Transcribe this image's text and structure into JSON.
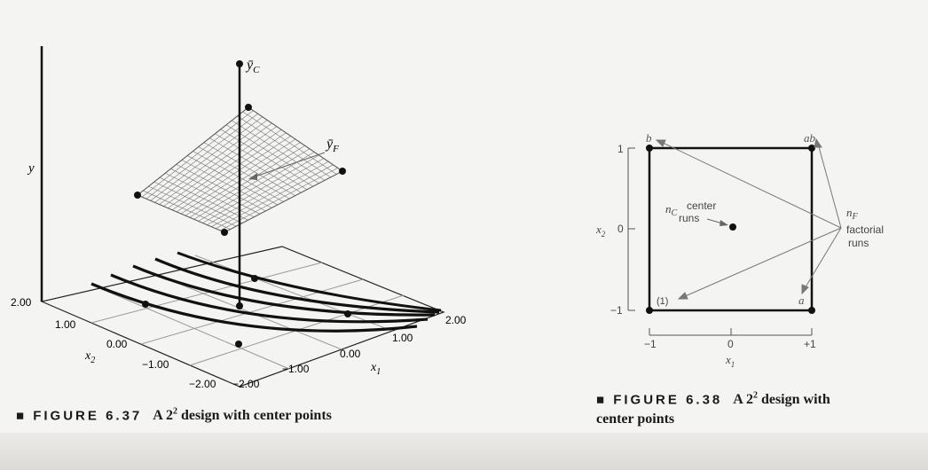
{
  "figure_637": {
    "y_axis_label": "y",
    "y_bar_c_label": "ȳ",
    "y_bar_c_sub": "C",
    "y_bar_f_label": "ȳ",
    "y_bar_f_sub": "F",
    "x1_label": "x",
    "x1_sub": "1",
    "x2_label": "x",
    "x2_sub": "2",
    "x1_ticks": [
      "−1.00",
      "0.00",
      "1.00",
      "2.00"
    ],
    "x2_ticks": [
      "2.00",
      "1.00",
      "0.00",
      "−1.00",
      "−2.00"
    ],
    "corner_tick": "−2.00",
    "caption_label": "■ FIGURE 6.37",
    "caption_text": "A 2",
    "caption_sup": "2",
    "caption_rest": " design with center points"
  },
  "figure_638": {
    "corner_b": "b",
    "corner_ab": "ab",
    "corner_a": "a",
    "corner_1": "(1)",
    "x2_label": "x",
    "x2_sub": "2",
    "x1_label": "x",
    "x1_sub": "1",
    "y_ticks": [
      "1",
      "0",
      "−1"
    ],
    "x_ticks": [
      "−1",
      "0",
      "+1"
    ],
    "nc_label": "n",
    "nc_sub": "C",
    "center_text_1": "center",
    "center_text_2": "runs",
    "nf_label": "n",
    "nf_sub": "F",
    "factorial_text_1": "factorial",
    "factorial_text_2": "runs",
    "caption_label": "■ FIGURE 6.38",
    "caption_text": "A 2",
    "caption_sup": "2",
    "caption_rest": " design with",
    "caption_line2": "center points"
  }
}
